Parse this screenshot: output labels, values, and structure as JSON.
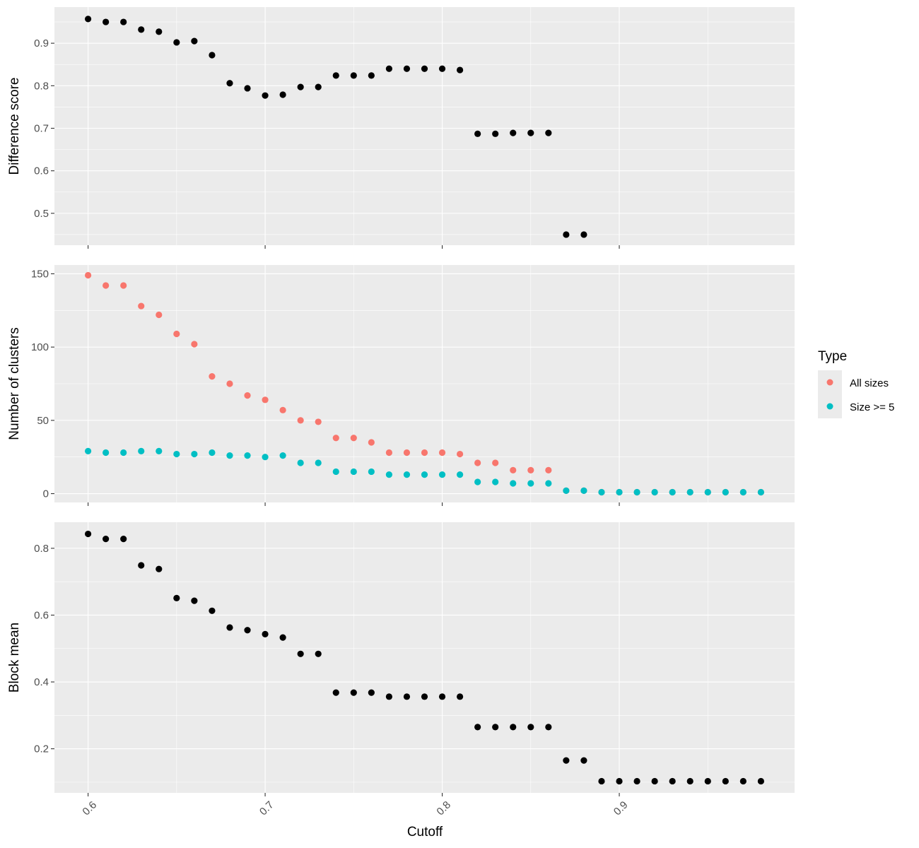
{
  "chart_data": [
    {
      "type": "scatter",
      "panel": "top",
      "xlabel": "",
      "ylabel": "Difference score",
      "yticks": [
        0.5,
        0.6,
        0.7,
        0.8,
        0.9
      ],
      "ylim": [
        0.425,
        0.985
      ],
      "x": [
        0.6,
        0.61,
        0.62,
        0.63,
        0.64,
        0.65,
        0.66,
        0.67,
        0.68,
        0.69,
        0.7,
        0.71,
        0.72,
        0.73,
        0.74,
        0.75,
        0.76,
        0.77,
        0.78,
        0.79,
        0.8,
        0.81,
        0.82,
        0.83,
        0.84,
        0.85,
        0.86,
        0.87,
        0.88
      ],
      "values": [
        0.957,
        0.95,
        0.95,
        0.932,
        0.927,
        0.902,
        0.905,
        0.872,
        0.806,
        0.794,
        0.777,
        0.779,
        0.797,
        0.797,
        0.824,
        0.824,
        0.824,
        0.84,
        0.84,
        0.84,
        0.84,
        0.837,
        0.687,
        0.687,
        0.689,
        0.689,
        0.689,
        0.45,
        0.45
      ],
      "color": "#000000"
    },
    {
      "type": "scatter",
      "panel": "middle",
      "xlabel": "",
      "ylabel": "Number of clusters",
      "yticks": [
        0,
        50,
        100,
        150
      ],
      "ylim": [
        -6,
        156
      ],
      "x": [
        0.6,
        0.61,
        0.62,
        0.63,
        0.64,
        0.65,
        0.66,
        0.67,
        0.68,
        0.69,
        0.7,
        0.71,
        0.72,
        0.73,
        0.74,
        0.75,
        0.76,
        0.77,
        0.78,
        0.79,
        0.8,
        0.81,
        0.82,
        0.83,
        0.84,
        0.85,
        0.86,
        0.87,
        0.88,
        0.89,
        0.9,
        0.91,
        0.92,
        0.93,
        0.94,
        0.95,
        0.96,
        0.97,
        0.98
      ],
      "series": [
        {
          "name": "All sizes",
          "color": "#F8766D",
          "values": [
            149,
            142,
            142,
            128,
            122,
            109,
            102,
            80,
            75,
            67,
            64,
            57,
            50,
            49,
            38,
            38,
            35,
            28,
            28,
            28,
            28,
            27,
            21,
            21,
            16,
            16,
            16,
            2,
            2,
            1,
            1,
            1,
            1,
            1,
            1,
            1,
            1,
            1,
            1
          ]
        },
        {
          "name": "Size >= 5",
          "color": "#00BFC4",
          "values": [
            29,
            28,
            28,
            29,
            29,
            27,
            27,
            28,
            26,
            26,
            25,
            26,
            21,
            21,
            15,
            15,
            15,
            13,
            13,
            13,
            13,
            13,
            8,
            8,
            7,
            7,
            7,
            2,
            2,
            1,
            1,
            1,
            1,
            1,
            1,
            1,
            1,
            1,
            1
          ]
        }
      ]
    },
    {
      "type": "scatter",
      "panel": "bottom",
      "xlabel": "Cutoff",
      "ylabel": "Block mean",
      "yticks": [
        0.2,
        0.4,
        0.6,
        0.8
      ],
      "ylim": [
        0.068,
        0.878
      ],
      "x": [
        0.6,
        0.61,
        0.62,
        0.63,
        0.64,
        0.65,
        0.66,
        0.67,
        0.68,
        0.69,
        0.7,
        0.71,
        0.72,
        0.73,
        0.74,
        0.75,
        0.76,
        0.77,
        0.78,
        0.79,
        0.8,
        0.81,
        0.82,
        0.83,
        0.84,
        0.85,
        0.86,
        0.87,
        0.88,
        0.89,
        0.9,
        0.91,
        0.92,
        0.93,
        0.94,
        0.95,
        0.96,
        0.97,
        0.98
      ],
      "values": [
        0.843,
        0.828,
        0.828,
        0.749,
        0.738,
        0.651,
        0.643,
        0.613,
        0.563,
        0.555,
        0.543,
        0.533,
        0.484,
        0.484,
        0.368,
        0.368,
        0.368,
        0.356,
        0.356,
        0.356,
        0.356,
        0.356,
        0.265,
        0.265,
        0.265,
        0.265,
        0.265,
        0.165,
        0.165,
        0.103,
        0.103,
        0.103,
        0.103,
        0.103,
        0.103,
        0.103,
        0.103,
        0.103,
        0.103
      ],
      "color": "#000000"
    }
  ],
  "x_axis": {
    "label": "Cutoff",
    "ticks": [
      0.6,
      0.7,
      0.8,
      0.9
    ],
    "tick_labels": [
      "0.6",
      "0.7",
      "0.8",
      "0.9"
    ],
    "xlim": [
      0.581,
      0.999
    ]
  },
  "legend": {
    "title": "Type",
    "placement": "right",
    "items": [
      {
        "label": "All sizes",
        "color": "#F8766D"
      },
      {
        "label": "Size >= 5",
        "color": "#00BFC4"
      }
    ]
  },
  "theme": {
    "panel_background": "#ebebeb",
    "grid": true
  }
}
